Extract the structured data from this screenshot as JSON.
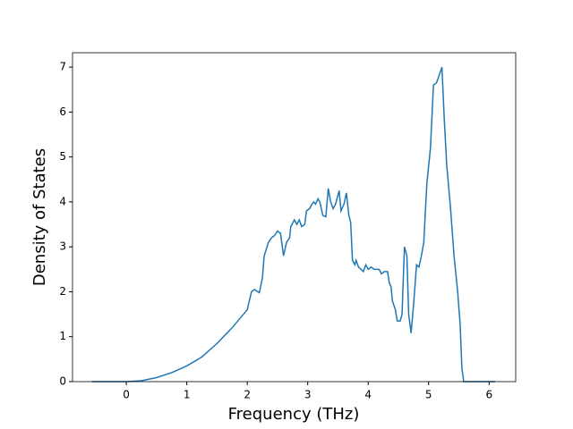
{
  "chart_data": {
    "type": "line",
    "xlabel": "Frequency (THz)",
    "ylabel": "Density of States",
    "xlim": [
      -0.89,
      6.44
    ],
    "ylim": [
      0,
      7.32
    ],
    "xticks": [
      0,
      1,
      2,
      3,
      4,
      5,
      6
    ],
    "yticks": [
      0,
      1,
      2,
      3,
      4,
      5,
      6,
      7
    ],
    "series": [
      {
        "color": "#1f77b4",
        "x": [
          -0.57,
          0,
          0.25,
          0.5,
          0.75,
          1,
          1.25,
          1.5,
          1.75,
          2.0,
          2.07,
          2.12,
          2.2,
          2.25,
          2.28,
          2.35,
          2.4,
          2.45,
          2.5,
          2.55,
          2.6,
          2.65,
          2.7,
          2.72,
          2.78,
          2.82,
          2.86,
          2.9,
          2.95,
          2.98,
          3.03,
          3.07,
          3.1,
          3.13,
          3.17,
          3.2,
          3.25,
          3.3,
          3.34,
          3.38,
          3.42,
          3.46,
          3.52,
          3.55,
          3.6,
          3.64,
          3.68,
          3.71,
          3.74,
          3.78,
          3.8,
          3.84,
          3.88,
          3.92,
          3.96,
          4.0,
          4.05,
          4.1,
          4.18,
          4.22,
          4.27,
          4.32,
          4.35,
          4.38,
          4.4,
          4.45,
          4.48,
          4.53,
          4.56,
          4.6,
          4.64,
          4.67,
          4.71,
          4.75,
          4.8,
          4.84,
          4.88,
          4.92,
          4.97,
          5.03,
          5.08,
          5.13,
          5.17,
          5.22,
          5.26,
          5.3,
          5.36,
          5.42,
          5.48,
          5.52,
          5.55,
          5.58,
          6.1
        ],
        "values": [
          0,
          0,
          0.02,
          0.09,
          0.2,
          0.35,
          0.55,
          0.85,
          1.2,
          1.6,
          2.0,
          2.05,
          1.98,
          2.3,
          2.8,
          3.1,
          3.2,
          3.25,
          3.35,
          3.3,
          2.8,
          3.1,
          3.2,
          3.45,
          3.6,
          3.5,
          3.6,
          3.45,
          3.5,
          3.8,
          3.85,
          3.95,
          4.0,
          3.95,
          4.07,
          4.0,
          3.7,
          3.67,
          4.3,
          4.0,
          3.85,
          3.95,
          4.25,
          3.8,
          3.95,
          4.2,
          3.7,
          3.55,
          2.7,
          2.6,
          2.7,
          2.55,
          2.5,
          2.45,
          2.6,
          2.5,
          2.55,
          2.5,
          2.5,
          2.4,
          2.45,
          2.45,
          2.2,
          2.1,
          1.8,
          1.6,
          1.35,
          1.35,
          1.5,
          3.0,
          2.8,
          1.5,
          1.08,
          1.7,
          2.6,
          2.55,
          2.8,
          3.1,
          4.4,
          5.2,
          6.6,
          6.65,
          6.8,
          7.0,
          5.8,
          4.8,
          3.9,
          2.8,
          2.0,
          1.3,
          0.3,
          0,
          0
        ]
      }
    ]
  }
}
